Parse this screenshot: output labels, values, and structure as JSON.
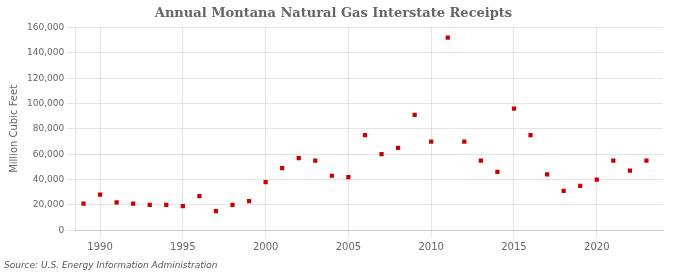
{
  "chart_data": {
    "type": "scatter",
    "title": "Annual Montana Natural Gas Interstate Receipts",
    "ylabel": "Million Cubic Feet",
    "annotation": "Source: U.S. Energy Information Administration",
    "x": [
      1989,
      1990,
      1991,
      1992,
      1993,
      1994,
      1995,
      1996,
      1997,
      1998,
      1999,
      2000,
      2001,
      2002,
      2003,
      2004,
      2005,
      2006,
      2007,
      2008,
      2009,
      2010,
      2011,
      2012,
      2013,
      2014,
      2015,
      2016,
      2017,
      2018,
      2019,
      2020,
      2021,
      2022,
      2023
    ],
    "values": [
      21000,
      28000,
      22000,
      21000,
      20000,
      20000,
      19000,
      27000,
      15000,
      20000,
      23000,
      38000,
      49000,
      57000,
      55000,
      43000,
      42000,
      75000,
      60000,
      65000,
      91000,
      70000,
      152000,
      70000,
      55000,
      46000,
      96000,
      75000,
      44000,
      31000,
      35000,
      40000,
      55000,
      47000,
      55000
    ],
    "color": "#cc0000",
    "marker": "square",
    "xlim": [
      1988.5,
      2024
    ],
    "xticks": [
      1990,
      1995,
      2000,
      2005,
      2010,
      2015,
      2020
    ],
    "ylim": [
      0,
      160000
    ],
    "yticks": [
      0,
      {
        "value": 20000,
        "label": "20,000"
      },
      {
        "value": 40000,
        "label": "40,000"
      },
      {
        "value": 60000,
        "label": "60,000"
      },
      {
        "value": 80000,
        "label": "80,000"
      },
      {
        "value": 100000,
        "label": "100,000"
      },
      {
        "value": 120000,
        "label": "120,000"
      },
      {
        "value": 140000,
        "label": "140,000"
      },
      {
        "value": 160000,
        "label": "160,000"
      }
    ],
    "grid": true
  }
}
